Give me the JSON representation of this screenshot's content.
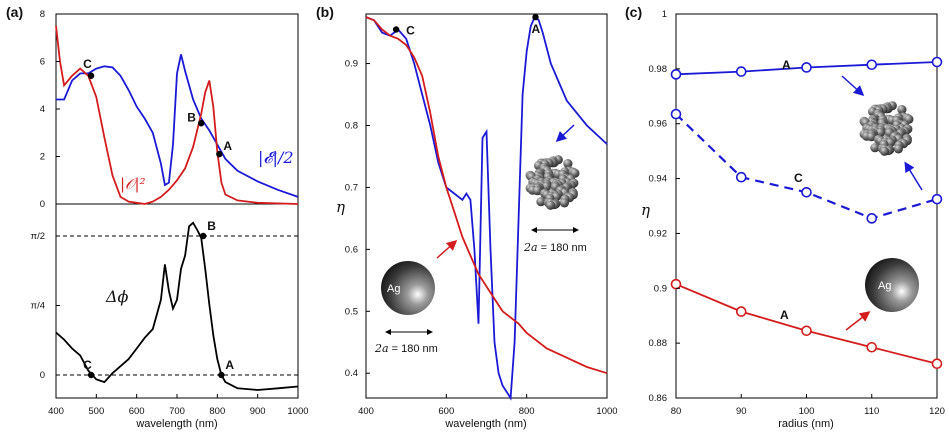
{
  "chart_data": [
    {
      "panel": "(a)",
      "type": "line",
      "subplots": [
        {
          "name": "top",
          "ylim": [
            0,
            8
          ],
          "yticks": [
            "0",
            "2",
            "4",
            "6",
            "8"
          ],
          "series": [
            {
              "name": "|E|/2",
              "label": "|𝓔|/2",
              "color": "#1a1ad6",
              "x": [
                400,
                420,
                440,
                460,
                480,
                500,
                520,
                540,
                560,
                580,
                600,
                620,
                640,
                660,
                670,
                680,
                690,
                700,
                710,
                720,
                740,
                760,
                780,
                800,
                820,
                850,
                900,
                950,
                1000
              ],
              "y": [
                4.4,
                4.4,
                5.2,
                5.5,
                5.5,
                5.7,
                5.8,
                5.75,
                5.4,
                4.8,
                4.1,
                3.6,
                3.0,
                1.7,
                0.8,
                0.9,
                2.5,
                5.5,
                6.3,
                5.6,
                4.4,
                3.6,
                3.1,
                2.5,
                1.9,
                1.4,
                0.95,
                0.6,
                0.3
              ]
            },
            {
              "name": "|O|^2",
              "label": "|𝒪|²",
              "color": "#d41c1c",
              "x": [
                400,
                410,
                420,
                440,
                460,
                480,
                500,
                520,
                540,
                560,
                580,
                600,
                620,
                640,
                660,
                680,
                700,
                720,
                740,
                760,
                770,
                780,
                790,
                800,
                810,
                820,
                850,
                900,
                1000
              ],
              "y": [
                7.5,
                6.0,
                5.0,
                5.4,
                5.7,
                5.4,
                4.5,
                2.8,
                1.2,
                0.3,
                0.1,
                0.05,
                0.0,
                0.1,
                0.3,
                0.6,
                1.0,
                1.5,
                2.4,
                3.8,
                4.7,
                5.2,
                4.1,
                2.2,
                0.9,
                0.4,
                0.15,
                0.05,
                0.0
              ]
            }
          ],
          "points": [
            {
              "label": "C",
              "x": 487,
              "y": 5.4
            },
            {
              "label": "B",
              "x": 760,
              "y": 3.4
            },
            {
              "label": "A",
              "x": 805,
              "y": 2.1
            }
          ]
        },
        {
          "name": "bottom",
          "ylabels": [
            "π/2",
            "π/4",
            "0"
          ],
          "series_label": "Δϕ",
          "reference_lines": [
            "π/2",
            "0"
          ],
          "series": [
            {
              "name": "delta_phi",
              "color": "#000000",
              "x": [
                400,
                420,
                440,
                460,
                480,
                500,
                520,
                540,
                560,
                580,
                600,
                620,
                640,
                660,
                670,
                680,
                690,
                700,
                710,
                720,
                730,
                740,
                750,
                760,
                770,
                780,
                790,
                800,
                810,
                820,
                850,
                900,
                950,
                1000
              ],
              "y": [
                0.48,
                0.4,
                0.3,
                0.22,
                0.05,
                -0.05,
                -0.08,
                0.02,
                0.1,
                0.18,
                0.3,
                0.42,
                0.52,
                0.85,
                1.25,
                0.95,
                0.75,
                0.85,
                1.2,
                1.35,
                1.68,
                1.72,
                1.64,
                1.55,
                1.2,
                0.8,
                0.45,
                0.18,
                0.0,
                -0.08,
                -0.15,
                -0.17,
                -0.15,
                -0.13
              ]
            }
          ],
          "points": [
            {
              "label": "C",
              "x": 487,
              "y": 0.0
            },
            {
              "label": "B",
              "x": 765,
              "y": 1.5708
            },
            {
              "label": "A",
              "x": 810,
              "y": 0.0
            }
          ]
        }
      ],
      "xlabel": "wavelength (nm)",
      "xlim": [
        400,
        1000
      ],
      "xticks": [
        400,
        500,
        600,
        700,
        800,
        900,
        1000
      ]
    },
    {
      "panel": "(b)",
      "type": "line",
      "ylabel": "η",
      "xlabel": "wavelength (nm)",
      "xlim": [
        400,
        1000
      ],
      "ylim": [
        0.36,
        0.98
      ],
      "yticks": [
        0.4,
        0.5,
        0.6,
        0.7,
        0.8,
        0.9
      ],
      "xticks": [
        400,
        600,
        800,
        1000
      ],
      "series": [
        {
          "name": "cluster",
          "color": "#1a1ad6",
          "x": [
            400,
            420,
            440,
            460,
            480,
            500,
            520,
            540,
            560,
            580,
            600,
            620,
            640,
            650,
            660,
            670,
            680,
            690,
            700,
            710,
            720,
            730,
            740,
            750,
            760,
            770,
            780,
            790,
            800,
            810,
            820,
            830,
            840,
            860,
            880,
            900,
            950,
            1000
          ],
          "y": [
            0.975,
            0.97,
            0.95,
            0.945,
            0.955,
            0.94,
            0.9,
            0.85,
            0.8,
            0.74,
            0.7,
            0.69,
            0.68,
            0.69,
            0.68,
            0.6,
            0.48,
            0.78,
            0.79,
            0.6,
            0.45,
            0.4,
            0.38,
            0.37,
            0.36,
            0.45,
            0.65,
            0.85,
            0.92,
            0.96,
            0.975,
            0.97,
            0.95,
            0.9,
            0.87,
            0.84,
            0.8,
            0.77
          ]
        },
        {
          "name": "sphere",
          "color": "#d41c1c",
          "x": [
            400,
            420,
            440,
            460,
            480,
            500,
            520,
            540,
            560,
            580,
            600,
            620,
            640,
            660,
            680,
            700,
            720,
            740,
            760,
            780,
            800,
            850,
            900,
            950,
            1000
          ],
          "y": [
            0.975,
            0.97,
            0.955,
            0.945,
            0.94,
            0.93,
            0.91,
            0.88,
            0.82,
            0.75,
            0.7,
            0.66,
            0.62,
            0.59,
            0.56,
            0.54,
            0.52,
            0.5,
            0.49,
            0.48,
            0.465,
            0.44,
            0.425,
            0.41,
            0.4
          ]
        }
      ],
      "points": [
        {
          "label": "C",
          "x": 475,
          "y": 0.955
        },
        {
          "label": "A",
          "x": 822,
          "y": 0.975
        }
      ],
      "annotations": [
        {
          "prefix": "2a",
          "text": " = 180 nm"
        },
        {
          "prefix": "2a",
          "text": " = 180 nm"
        }
      ],
      "sphere_label": "Ag"
    },
    {
      "panel": "(c)",
      "type": "line",
      "ylabel": "η",
      "xlabel": "radius (nm)",
      "xlim": [
        80,
        120
      ],
      "ylim": [
        0.86,
        1.0
      ],
      "yticks": [
        "0.86",
        "0.88",
        "0.9",
        "0.92",
        "0.94",
        "0.96",
        "0.98",
        "1"
      ],
      "xticks": [
        80,
        90,
        100,
        110,
        120
      ],
      "series": [
        {
          "name": "cluster A",
          "label": "A",
          "color": "#1a1ad6",
          "dashed": false,
          "x": [
            80,
            90,
            100,
            110,
            120
          ],
          "y": [
            0.978,
            0.979,
            0.9805,
            0.9815,
            0.9825
          ]
        },
        {
          "name": "cluster C",
          "label": "C",
          "color": "#1a1ad6",
          "dashed": true,
          "x": [
            80,
            90,
            100,
            110,
            120
          ],
          "y": [
            0.9635,
            0.9405,
            0.935,
            0.9255,
            0.9325
          ]
        },
        {
          "name": "sphere A",
          "label": "A",
          "color": "#d41c1c",
          "dashed": false,
          "x": [
            80,
            90,
            100,
            110,
            120
          ],
          "y": [
            0.9015,
            0.8915,
            0.8845,
            0.8785,
            0.8725
          ]
        }
      ],
      "sphere_label": "Ag"
    }
  ]
}
